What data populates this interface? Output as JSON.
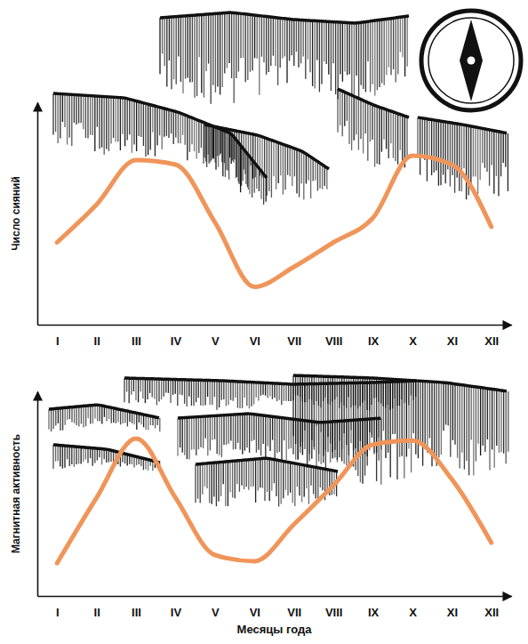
{
  "chart_data": [
    {
      "type": "line",
      "y_label": "Число сияний",
      "categories": [
        "I",
        "II",
        "III",
        "IV",
        "V",
        "VI",
        "VII",
        "VIII",
        "IX",
        "X",
        "XI",
        "XII"
      ],
      "values": [
        37,
        54,
        74,
        72,
        46,
        17,
        26,
        37,
        48,
        76,
        72,
        44
      ],
      "color": "#f0955a",
      "ylim": [
        0,
        100
      ],
      "yticks": [],
      "tick_labels": "x"
    },
    {
      "type": "line",
      "y_label": "Магнитная активность",
      "x_label": "Месяцы года",
      "categories": [
        "I",
        "II",
        "III",
        "IV",
        "V",
        "VI",
        "VII",
        "VIII",
        "IX",
        "X",
        "XI",
        "XII"
      ],
      "values": [
        16,
        48,
        77,
        48,
        20,
        17,
        35,
        54,
        74,
        76,
        57,
        26
      ],
      "color": "#f0955a",
      "ylim": [
        0,
        100
      ],
      "yticks": [],
      "tick_labels": "x"
    }
  ]
}
